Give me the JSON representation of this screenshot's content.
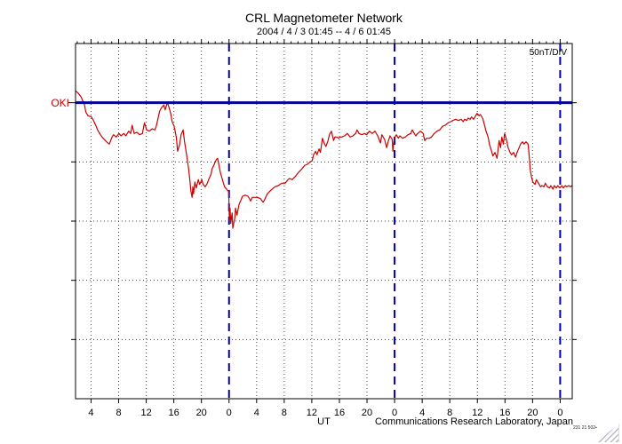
{
  "page": {
    "title": "CRL Magnetometer Network",
    "subtitle": "2004 / 4 / 3  01:45 -- 4 / 6  01:45",
    "scale_label": "50nT/DIV",
    "station_label": "OKI",
    "x_axis_unit": "UT",
    "credit": "Communications Research Laboratory, Japan",
    "fine_print": "231 21 502▪"
  },
  "colors": {
    "trace": "#cc0000",
    "baseline": "#000099",
    "day_divider": "#0000aa",
    "grid": "#444444",
    "frame": "#000000",
    "station_label": "#cc0000"
  },
  "chart_data": {
    "type": "line",
    "title": "CRL Magnetometer Network",
    "subtitle": "2004 / 4 / 3  01:45 -- 4 / 6  01:45",
    "xlabel": "UT",
    "ylabel": "",
    "scale_note": "50nT/DIV",
    "station": "OKI",
    "x_unit": "hours since 2004-04-03 01:45 UT",
    "x_range_hours": [
      0,
      72
    ],
    "y_unit": "nT relative to OKI baseline",
    "y_range": [
      -250,
      50
    ],
    "y_division_nT": 50,
    "n_y_divisions": 6,
    "baseline_division_from_top": 1,
    "x_tick_interval_hours": 4,
    "x_minor_tick_interval_hours": 1,
    "grid": true,
    "x_ticks": [
      {
        "hour": 2.25,
        "label": "4"
      },
      {
        "hour": 6.25,
        "label": "8"
      },
      {
        "hour": 10.25,
        "label": "12"
      },
      {
        "hour": 14.25,
        "label": "16"
      },
      {
        "hour": 18.25,
        "label": "20"
      },
      {
        "hour": 22.25,
        "label": "0"
      },
      {
        "hour": 26.25,
        "label": "4"
      },
      {
        "hour": 30.25,
        "label": "8"
      },
      {
        "hour": 34.25,
        "label": "12"
      },
      {
        "hour": 38.25,
        "label": "16"
      },
      {
        "hour": 42.25,
        "label": "20"
      },
      {
        "hour": 46.25,
        "label": "0"
      },
      {
        "hour": 50.25,
        "label": "4"
      },
      {
        "hour": 54.25,
        "label": "8"
      },
      {
        "hour": 58.25,
        "label": "12"
      },
      {
        "hour": 62.25,
        "label": "16"
      },
      {
        "hour": 66.25,
        "label": "20"
      },
      {
        "hour": 70.25,
        "label": "0"
      }
    ],
    "day_boundaries_hours": [
      22.25,
      46.25,
      70.25
    ],
    "start_ut_hour_of_day": 1.75,
    "series": [
      {
        "name": "OKI",
        "color": "#cc0000",
        "points": [
          [
            0,
            10
          ],
          [
            0.4,
            8
          ],
          [
            0.8,
            5
          ],
          [
            1.3,
            -2
          ],
          [
            1.5,
            -8
          ],
          [
            1.8,
            -11
          ],
          [
            2.3,
            -12
          ],
          [
            2.6,
            -15
          ],
          [
            3,
            -20
          ],
          [
            3.2,
            -23
          ],
          [
            3.6,
            -27
          ],
          [
            4,
            -30
          ],
          [
            4.5,
            -33
          ],
          [
            4.9,
            -35
          ],
          [
            5.3,
            -29
          ],
          [
            5.5,
            -27
          ],
          [
            5.9,
            -29
          ],
          [
            6.3,
            -26
          ],
          [
            6.6,
            -28
          ],
          [
            7,
            -26
          ],
          [
            7.3,
            -28
          ],
          [
            7.7,
            -24
          ],
          [
            8,
            -26
          ],
          [
            8.2,
            -19
          ],
          [
            8.5,
            -26
          ],
          [
            8.9,
            -25
          ],
          [
            9.3,
            -27
          ],
          [
            9.7,
            -26
          ],
          [
            10,
            -17
          ],
          [
            10.3,
            -23
          ],
          [
            10.7,
            -24
          ],
          [
            11.1,
            -22
          ],
          [
            11.5,
            -23
          ],
          [
            11.7,
            -20
          ],
          [
            12,
            -12
          ],
          [
            12.2,
            -7
          ],
          [
            12.5,
            -4
          ],
          [
            12.8,
            -2
          ],
          [
            13,
            -6
          ],
          [
            13.3,
            0
          ],
          [
            13.5,
            -3
          ],
          [
            13.8,
            -9
          ],
          [
            14,
            -16
          ],
          [
            14.3,
            -20
          ],
          [
            14.6,
            -29
          ],
          [
            14.8,
            -41
          ],
          [
            15.1,
            -35
          ],
          [
            15.3,
            -27
          ],
          [
            15.6,
            -23
          ],
          [
            15.8,
            -33
          ],
          [
            16.1,
            -44
          ],
          [
            16.4,
            -56
          ],
          [
            16.6,
            -67
          ],
          [
            16.7,
            -74
          ],
          [
            16.9,
            -80
          ],
          [
            17,
            -71
          ],
          [
            17.1,
            -77
          ],
          [
            17.3,
            -67
          ],
          [
            17.5,
            -72
          ],
          [
            17.8,
            -65
          ],
          [
            18,
            -69
          ],
          [
            18.3,
            -65
          ],
          [
            18.5,
            -69
          ],
          [
            18.8,
            -71
          ],
          [
            19.1,
            -68
          ],
          [
            19.3,
            -65
          ],
          [
            19.6,
            -61
          ],
          [
            19.8,
            -56
          ],
          [
            20.1,
            -52
          ],
          [
            20.4,
            -48
          ],
          [
            20.6,
            -47
          ],
          [
            21,
            -59
          ],
          [
            21.4,
            -67
          ],
          [
            21.6,
            -71
          ],
          [
            21.9,
            -73
          ],
          [
            22.2,
            -75
          ],
          [
            22.3,
            -99
          ],
          [
            22.4,
            -89
          ],
          [
            22.5,
            -102
          ],
          [
            22.7,
            -93
          ],
          [
            22.8,
            -106
          ],
          [
            23.1,
            -97
          ],
          [
            23.2,
            -89
          ],
          [
            23.4,
            -95
          ],
          [
            23.7,
            -86
          ],
          [
            24,
            -82
          ],
          [
            24.2,
            -79
          ],
          [
            24.6,
            -78
          ],
          [
            25,
            -79
          ],
          [
            25.4,
            -83
          ],
          [
            25.6,
            -80
          ],
          [
            26,
            -80
          ],
          [
            26.4,
            -80
          ],
          [
            26.8,
            -81
          ],
          [
            27.2,
            -84
          ],
          [
            27.4,
            -82
          ],
          [
            27.8,
            -77
          ],
          [
            28.3,
            -74
          ],
          [
            28.9,
            -71
          ],
          [
            29.4,
            -70
          ],
          [
            29.9,
            -68
          ],
          [
            30.4,
            -68
          ],
          [
            30.8,
            -65
          ],
          [
            31,
            -64
          ],
          [
            31.4,
            -65
          ],
          [
            31.9,
            -62
          ],
          [
            32.3,
            -59
          ],
          [
            32.8,
            -56
          ],
          [
            33.2,
            -53
          ],
          [
            33.6,
            -52
          ],
          [
            34,
            -50
          ],
          [
            34.3,
            -49
          ],
          [
            34.5,
            -44
          ],
          [
            34.8,
            -41
          ],
          [
            35,
            -44
          ],
          [
            35.3,
            -39
          ],
          [
            35.5,
            -42
          ],
          [
            35.8,
            -30
          ],
          [
            36.1,
            -35
          ],
          [
            36.3,
            -37
          ],
          [
            36.6,
            -32
          ],
          [
            36.8,
            -27
          ],
          [
            37.1,
            -24
          ],
          [
            37.4,
            -32
          ],
          [
            37.6,
            -29
          ],
          [
            37.9,
            -29
          ],
          [
            38.1,
            -30
          ],
          [
            38.4,
            -29
          ],
          [
            38.6,
            -29
          ],
          [
            39,
            -28
          ],
          [
            39.4,
            -26
          ],
          [
            39.8,
            -29
          ],
          [
            40.2,
            -28
          ],
          [
            40.6,
            -26
          ],
          [
            40.8,
            -23
          ],
          [
            41.1,
            -26
          ],
          [
            41.5,
            -27
          ],
          [
            41.9,
            -26
          ],
          [
            42.2,
            -27
          ],
          [
            42.6,
            -24
          ],
          [
            43,
            -26
          ],
          [
            43.4,
            -24
          ],
          [
            43.8,
            -28
          ],
          [
            44.2,
            -34
          ],
          [
            44.4,
            -27
          ],
          [
            44.8,
            -31
          ],
          [
            45.1,
            -38
          ],
          [
            45.3,
            -33
          ],
          [
            45.6,
            -28
          ],
          [
            45.9,
            -31
          ],
          [
            46,
            -41
          ],
          [
            46.2,
            -30
          ],
          [
            46.5,
            -27
          ],
          [
            46.8,
            -30
          ],
          [
            47,
            -28
          ],
          [
            47.4,
            -30
          ],
          [
            47.8,
            -29
          ],
          [
            48.2,
            -27
          ],
          [
            48.6,
            -26
          ],
          [
            48.8,
            -23
          ],
          [
            49.1,
            -26
          ],
          [
            49.3,
            -28
          ],
          [
            49.6,
            -26
          ],
          [
            50,
            -24
          ],
          [
            50.4,
            -26
          ],
          [
            50.6,
            -32
          ],
          [
            50.9,
            -30
          ],
          [
            51.3,
            -30
          ],
          [
            51.6,
            -29
          ],
          [
            52,
            -26
          ],
          [
            52.4,
            -24
          ],
          [
            52.8,
            -23
          ],
          [
            53.2,
            -20
          ],
          [
            53.6,
            -19
          ],
          [
            54,
            -17
          ],
          [
            54.4,
            -16
          ],
          [
            54.7,
            -15
          ],
          [
            55.1,
            -14
          ],
          [
            55.5,
            -15
          ],
          [
            55.9,
            -14
          ],
          [
            56.2,
            -16
          ],
          [
            56.4,
            -14
          ],
          [
            56.7,
            -15
          ],
          [
            56.9,
            -13
          ],
          [
            57.2,
            -14
          ],
          [
            57.4,
            -12
          ],
          [
            57.7,
            -14
          ],
          [
            58,
            -11
          ],
          [
            58.2,
            -9
          ],
          [
            58.5,
            -11
          ],
          [
            58.7,
            -10
          ],
          [
            59,
            -13
          ],
          [
            59.2,
            -17
          ],
          [
            59.5,
            -24
          ],
          [
            59.8,
            -29
          ],
          [
            60,
            -35
          ],
          [
            60.3,
            -41
          ],
          [
            60.5,
            -45
          ],
          [
            60.8,
            -42
          ],
          [
            61.1,
            -47
          ],
          [
            61.3,
            -37
          ],
          [
            61.4,
            -32
          ],
          [
            61.6,
            -38
          ],
          [
            61.8,
            -29
          ],
          [
            62,
            -35
          ],
          [
            62.2,
            -26
          ],
          [
            62.5,
            -32
          ],
          [
            62.7,
            -38
          ],
          [
            63,
            -42
          ],
          [
            63.2,
            -44
          ],
          [
            63.5,
            -42
          ],
          [
            63.8,
            -46
          ],
          [
            64,
            -42
          ],
          [
            64.3,
            -38
          ],
          [
            64.5,
            -35
          ],
          [
            64.8,
            -33
          ],
          [
            65,
            -35
          ],
          [
            65.3,
            -33
          ],
          [
            65.6,
            -35
          ],
          [
            65.7,
            -41
          ],
          [
            65.8,
            -48
          ],
          [
            65.9,
            -56
          ],
          [
            66.1,
            -63
          ],
          [
            66.3,
            -67
          ],
          [
            66.6,
            -69
          ],
          [
            66.8,
            -65
          ],
          [
            67.1,
            -68
          ],
          [
            67.4,
            -71
          ],
          [
            67.6,
            -70
          ],
          [
            67.9,
            -71
          ],
          [
            68.1,
            -68
          ],
          [
            68.4,
            -71
          ],
          [
            68.7,
            -72
          ],
          [
            68.9,
            -70
          ],
          [
            69.2,
            -73
          ],
          [
            69.4,
            -70
          ],
          [
            69.7,
            -72
          ],
          [
            69.9,
            -70
          ],
          [
            70.2,
            -72
          ],
          [
            70.5,
            -70
          ],
          [
            70.7,
            -72
          ],
          [
            71,
            -70
          ],
          [
            71.2,
            -71
          ],
          [
            71.5,
            -70
          ],
          [
            71.7,
            -71
          ],
          [
            72,
            -70
          ]
        ]
      }
    ]
  }
}
